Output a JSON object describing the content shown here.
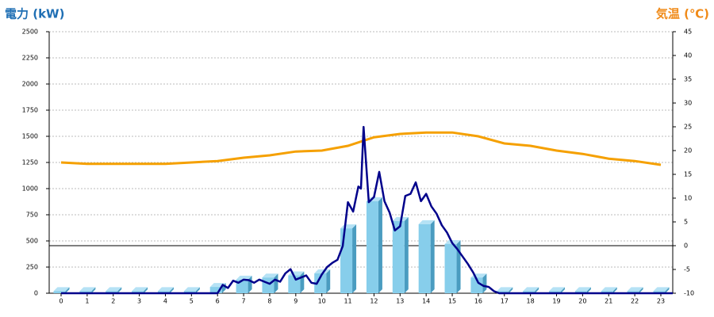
{
  "chart_data": {
    "type": "bar-line",
    "y_label": "電力 (kW)",
    "y2_label": "気温 (℃)",
    "categories": [
      "0",
      "1",
      "2",
      "3",
      "4",
      "5",
      "6",
      "7",
      "8",
      "9",
      "10",
      "11",
      "12",
      "13",
      "14",
      "15",
      "16",
      "17",
      "18",
      "19",
      "20",
      "21",
      "22",
      "23"
    ],
    "ylim": [
      0,
      2500
    ],
    "yticks": [
      0,
      250,
      500,
      750,
      1000,
      1250,
      1500,
      1750,
      2000,
      2250,
      2500
    ],
    "y2lim": [
      -10,
      45
    ],
    "y2ticks": [
      -10,
      -5,
      0,
      5,
      10,
      15,
      20,
      25,
      30,
      35,
      40,
      45
    ],
    "grid": true,
    "y2_zero_line": true,
    "bars": {
      "color": "#87ceeb",
      "side_color": "#4a9cc0",
      "values": [
        20,
        20,
        20,
        20,
        20,
        20,
        60,
        130,
        150,
        170,
        190,
        620,
        880,
        690,
        660,
        470,
        150,
        20,
        20,
        20,
        20,
        20,
        20,
        20
      ]
    },
    "power_line": {
      "color": "#00008b",
      "x": [
        0,
        5.9,
        6.0,
        6.2,
        6.4,
        6.6,
        6.8,
        7.0,
        7.2,
        7.4,
        7.6,
        7.8,
        8.0,
        8.2,
        8.4,
        8.6,
        8.8,
        9.0,
        9.2,
        9.4,
        9.6,
        9.8,
        10.0,
        10.2,
        10.4,
        10.6,
        10.8,
        11.0,
        11.2,
        11.4,
        11.5,
        11.6,
        11.8,
        12.0,
        12.2,
        12.4,
        12.6,
        12.8,
        13.0,
        13.2,
        13.4,
        13.6,
        13.8,
        14.0,
        14.2,
        14.4,
        14.6,
        14.8,
        15.0,
        15.2,
        15.4,
        15.6,
        15.8,
        16.0,
        16.2,
        16.4,
        16.6,
        16.8,
        23.5
      ],
      "values": [
        0,
        0,
        0,
        80,
        50,
        120,
        100,
        130,
        125,
        100,
        130,
        110,
        90,
        130,
        110,
        190,
        230,
        130,
        150,
        170,
        100,
        90,
        180,
        250,
        290,
        320,
        450,
        870,
        780,
        1020,
        1000,
        1590,
        870,
        920,
        1160,
        880,
        770,
        600,
        640,
        930,
        950,
        1060,
        880,
        950,
        830,
        760,
        650,
        580,
        480,
        420,
        350,
        280,
        200,
        100,
        70,
        60,
        20,
        0,
        0
      ]
    },
    "temp_line": {
      "color": "#f5a000",
      "axis": "y2",
      "values": [
        17.5,
        17.2,
        17.2,
        17.2,
        17.2,
        17.5,
        17.8,
        18.5,
        19,
        19.8,
        20,
        21,
        22.8,
        23.5,
        23.8,
        23.8,
        23,
        21.5,
        21,
        20,
        19.3,
        18.3,
        17.8,
        17
      ]
    }
  }
}
